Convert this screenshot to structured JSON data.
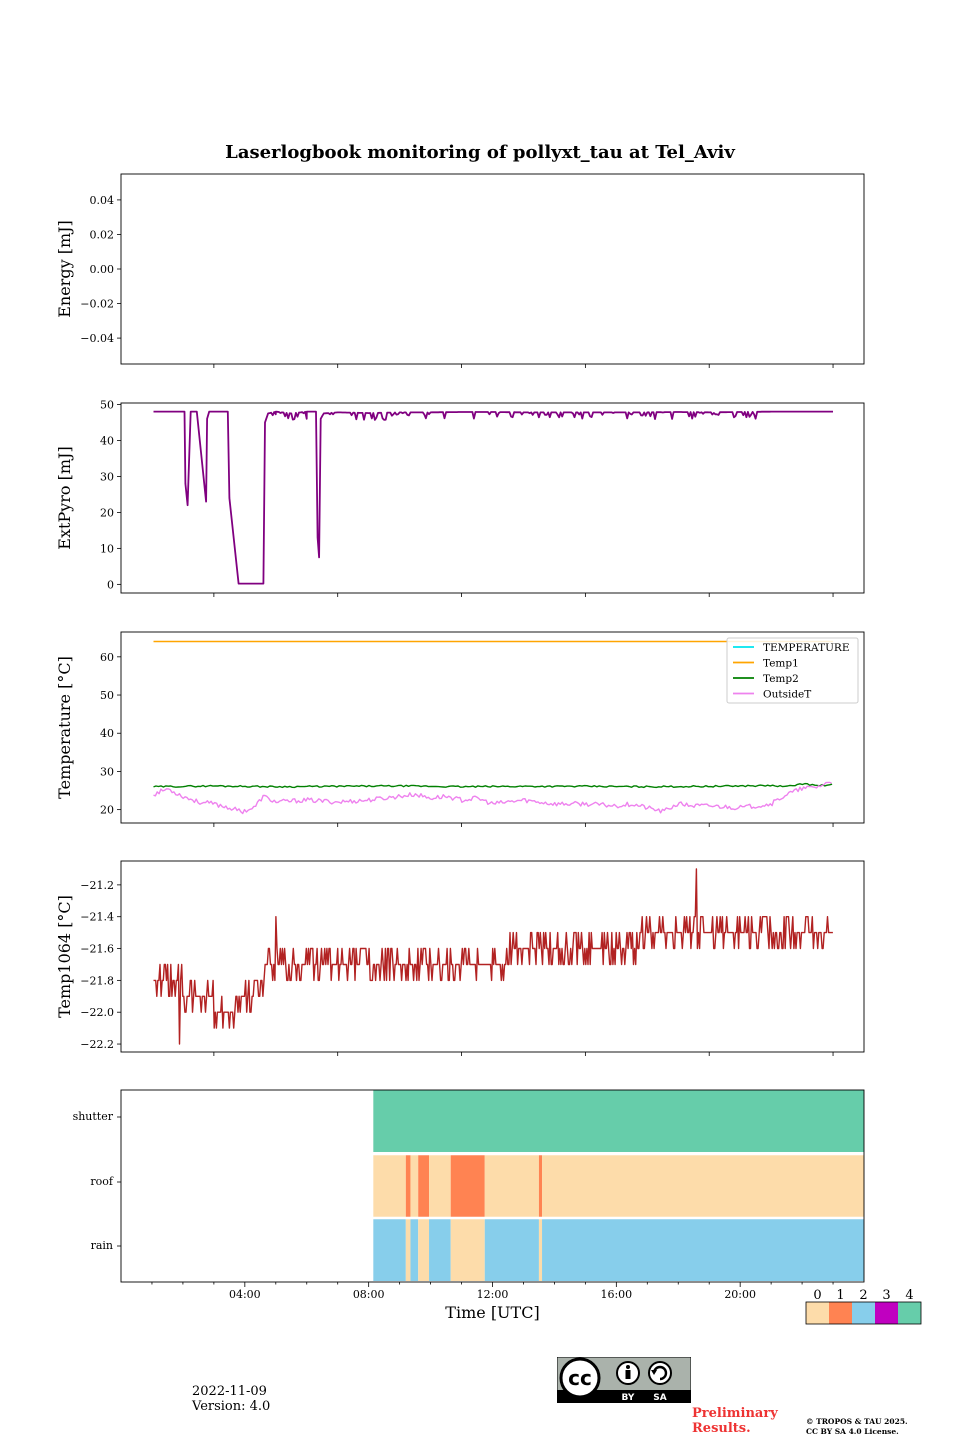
{
  "figure": {
    "title": "Laserlogbook monitoring of pollyxt_tau at Tel_Aviv",
    "date": "2022-11-09",
    "version": "Version: 4.0",
    "preliminary": [
      "Preliminary",
      "Results."
    ],
    "copyright": [
      "© TROPOS & TAU 2025.",
      "CC BY SA 4.0 License."
    ],
    "cc_badge": {
      "by": "BY",
      "sa": "SA",
      "cc": "cc"
    }
  },
  "chart_data": [
    {
      "type": "line",
      "ylabel": "Energy [mJ]",
      "ylim": [
        -0.055,
        0.055
      ],
      "yticks": [
        0.04,
        0.02,
        0.0,
        -0.02,
        -0.04
      ],
      "ytick_labels": [
        "0.04",
        "0.02",
        "0.00",
        "−0.02",
        "−0.04"
      ],
      "xlim": [
        0,
        24
      ],
      "series": []
    },
    {
      "type": "line",
      "ylabel": "ExtPyro [mJ]",
      "ylim": [
        -2.4,
        50.4
      ],
      "yticks": [
        0,
        10,
        20,
        30,
        40,
        50
      ],
      "ytick_labels": [
        "0",
        "10",
        "20",
        "30",
        "40",
        "50"
      ],
      "xlim": [
        0,
        24
      ],
      "series": [
        {
          "color": "#800080",
          "x": [
            1.05,
            2.05,
            2.08,
            2.15,
            2.25,
            2.45,
            2.75,
            2.78,
            2.85,
            3.0,
            3.2,
            3.45,
            3.5,
            3.8,
            4.3,
            4.6,
            4.65,
            4.75,
            5.0,
            5.5,
            6.0,
            6.3,
            6.35,
            6.4,
            6.45,
            6.55,
            7.0,
            8.0,
            9.0,
            10.0,
            11.0,
            12.0,
            13.0,
            14.0,
            15.0,
            16.0,
            17.0,
            18.0,
            19.0,
            20.0,
            21.0,
            22.0,
            23.0
          ],
          "y": [
            48,
            48,
            28,
            22,
            48,
            48,
            23,
            46,
            48,
            48,
            48,
            48,
            24,
            0.2,
            0.2,
            0.2,
            45,
            47.5,
            48,
            47.5,
            48,
            48,
            13,
            7.5,
            46,
            47.5,
            47.8,
            47.6,
            47.8,
            47.8,
            47.9,
            47.9,
            47.8,
            47.8,
            47.8,
            47.8,
            47.8,
            47.9,
            47.8,
            47.9,
            48,
            48,
            48
          ],
          "noise": {
            "from": 4.7,
            "to": 20.3,
            "depth": 2.0,
            "prob": 0.25,
            "base": 48
          }
        }
      ]
    },
    {
      "type": "line",
      "ylabel": "Temperature [°C]",
      "ylim": [
        16.5,
        66.5
      ],
      "yticks": [
        20,
        30,
        40,
        50,
        60
      ],
      "ytick_labels": [
        "20",
        "30",
        "40",
        "50",
        "60"
      ],
      "xlim": [
        0,
        24
      ],
      "legend": {
        "position": "top-right",
        "entries": [
          "TEMPERATURE",
          "Temp1",
          "Temp2",
          "OutsideT"
        ]
      },
      "series": [
        {
          "name": "TEMPERATURE",
          "color": "#00e5ee",
          "x": [],
          "y": []
        },
        {
          "name": "Temp1",
          "color": "#ffa500",
          "x": [
            1.05,
            23.0
          ],
          "y": [
            64,
            64
          ]
        },
        {
          "name": "Temp2",
          "color": "#008000",
          "x": [
            1.05,
            3,
            5,
            7,
            9,
            11,
            13,
            15,
            17,
            19,
            21,
            21.5,
            22.0,
            22.5,
            23.0
          ],
          "y": [
            26,
            26.2,
            26,
            26.1,
            26.2,
            26,
            26.1,
            26.1,
            26,
            26.1,
            26.3,
            26.0,
            26.8,
            26.3,
            26.5
          ]
        },
        {
          "name": "OutsideT",
          "color": "#ee82ee",
          "x": [
            1.05,
            1.5,
            2.0,
            2.5,
            3.0,
            3.5,
            3.9,
            4.3,
            4.6,
            5.0,
            6.0,
            7.0,
            8.0,
            9.0,
            9.5,
            10.0,
            10.5,
            11.0,
            11.5,
            12.0,
            13.0,
            14.0,
            15.0,
            16.0,
            16.5,
            17.0,
            17.5,
            18.0,
            18.5,
            19.0,
            20.0,
            20.5,
            21.0,
            21.5,
            22.0,
            22.5,
            23.0
          ],
          "y": [
            24,
            25.5,
            23.5,
            22,
            21.5,
            20.5,
            19.5,
            20.5,
            23.5,
            22,
            22.5,
            22,
            22.5,
            23.5,
            24,
            23,
            23.5,
            22.5,
            23,
            21.5,
            22.5,
            21.5,
            21.5,
            21,
            21.5,
            20.5,
            19.5,
            21.5,
            21,
            21,
            20.5,
            21,
            21.5,
            24,
            25.5,
            26,
            27.5
          ]
        }
      ]
    },
    {
      "type": "line",
      "ylabel": "Temp1064 [°C]",
      "ylim": [
        -22.25,
        -21.05
      ],
      "yticks": [
        -21.2,
        -21.4,
        -21.6,
        -21.8,
        -22.0,
        -22.2
      ],
      "ytick_labels": [
        "−21.2",
        "−21.4",
        "−21.6",
        "−21.8",
        "−22.0",
        "−22.2"
      ],
      "xlim": [
        0,
        24
      ],
      "series": [
        {
          "color": "#b22222",
          "x": [
            1.05,
            1.5,
            2.0,
            2.5,
            3.0,
            3.5,
            4.0,
            4.3,
            4.6,
            5.0,
            6.0,
            7.0,
            8.0,
            9.0,
            10.0,
            11.0,
            12.0,
            13.0,
            14.0,
            15.0,
            16.0,
            17.0,
            18.0,
            19.0,
            20.0,
            21.0,
            22.0,
            23.0
          ],
          "y": [
            -21.75,
            -21.8,
            -21.85,
            -21.95,
            -21.95,
            -22.0,
            -21.95,
            -21.85,
            -21.75,
            -21.7,
            -21.72,
            -21.72,
            -21.68,
            -21.68,
            -21.7,
            -21.7,
            -21.66,
            -21.64,
            -21.62,
            -21.6,
            -21.58,
            -21.54,
            -21.52,
            -21.5,
            -21.5,
            -21.5,
            -21.46,
            -21.5
          ],
          "noise": {
            "step": 0.1,
            "prob": 0.45
          },
          "spikes": [
            {
              "x": 1.9,
              "y": -22.2
            },
            {
              "x": 5.0,
              "y": -21.4
            },
            {
              "x": 18.6,
              "y": -21.1
            }
          ]
        }
      ]
    },
    {
      "type": "heatmap",
      "xlabel": "Time [UTC]",
      "xlim": [
        0,
        24
      ],
      "xtick_labels": [
        "04:00",
        "08:00",
        "12:00",
        "16:00",
        "20:00"
      ],
      "xticks": [
        4,
        8,
        12,
        16,
        20
      ],
      "rows": [
        "shutter",
        "roof",
        "rain"
      ],
      "colorbar": {
        "ticks": [
          "0",
          "1",
          "2",
          "3",
          "4"
        ],
        "colors": [
          "#fddcaa",
          "#ff8352",
          "#87ceeb",
          "#c000c0",
          "#66cdaa"
        ]
      },
      "segments": {
        "shutter": [
          [
            8.15,
            24,
            4
          ]
        ],
        "roof": [
          [
            8.15,
            9.2,
            0
          ],
          [
            9.2,
            9.35,
            1
          ],
          [
            9.35,
            9.6,
            0
          ],
          [
            9.6,
            9.95,
            1
          ],
          [
            9.95,
            10.65,
            0
          ],
          [
            10.65,
            11.75,
            1
          ],
          [
            11.75,
            13.5,
            0
          ],
          [
            13.5,
            13.6,
            1
          ],
          [
            13.6,
            24,
            0
          ]
        ],
        "rain": [
          [
            8.15,
            9.2,
            2
          ],
          [
            9.2,
            9.35,
            0
          ],
          [
            9.35,
            9.6,
            2
          ],
          [
            9.6,
            9.95,
            0
          ],
          [
            9.95,
            10.65,
            2
          ],
          [
            10.65,
            11.75,
            0
          ],
          [
            11.75,
            13.5,
            2
          ],
          [
            13.5,
            13.6,
            0
          ],
          [
            13.6,
            24,
            2
          ]
        ]
      }
    }
  ]
}
